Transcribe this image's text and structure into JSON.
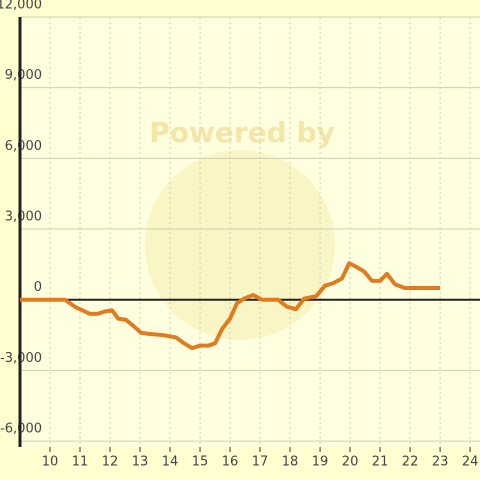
{
  "chart_data": {
    "type": "line",
    "watermark": "Powered by",
    "x": [
      9,
      10,
      10.5,
      10.83,
      11.33,
      11.57,
      11.83,
      12.07,
      12.27,
      12.53,
      12.77,
      13.03,
      13.3,
      13.77,
      14.2,
      14.47,
      14.73,
      15.0,
      15.27,
      15.5,
      15.73,
      16.0,
      16.23,
      16.47,
      16.77,
      17.07,
      17.6,
      17.9,
      18.2,
      18.47,
      18.87,
      19.17,
      19.43,
      19.73,
      19.97,
      20.2,
      20.47,
      20.73,
      21.0,
      21.23,
      21.5,
      21.83,
      22.17,
      23.0
    ],
    "series": [
      {
        "color": "#e07b20",
        "values": [
          0,
          0,
          0,
          -300,
          -600,
          -600,
          -500,
          -450,
          -800,
          -850,
          -1100,
          -1400,
          -1450,
          -1500,
          -1600,
          -1850,
          -2050,
          -1950,
          -1950,
          -1850,
          -1250,
          -800,
          -150,
          50,
          200,
          0,
          0,
          -300,
          -400,
          50,
          150,
          600,
          700,
          900,
          1550,
          1400,
          1200,
          800,
          800,
          1100,
          650,
          500,
          500,
          500
        ]
      }
    ],
    "xlim": [
      9,
      24.33
    ],
    "xticks": [
      10,
      11,
      12,
      13,
      14,
      15,
      16,
      17,
      18,
      19,
      20,
      21,
      22,
      23,
      24
    ],
    "ylim": [
      -6250,
      12000
    ],
    "yticks": [
      {
        "value": 12000,
        "label": "12,000"
      },
      {
        "value": 9000,
        "label": "9,000"
      },
      {
        "value": 6000,
        "label": "6,000"
      },
      {
        "value": 3000,
        "label": "3,000"
      },
      0,
      {
        "value": -3000,
        "label": "-3,000"
      },
      {
        "value": -6000,
        "label": "-6,000"
      }
    ],
    "grid": true
  }
}
